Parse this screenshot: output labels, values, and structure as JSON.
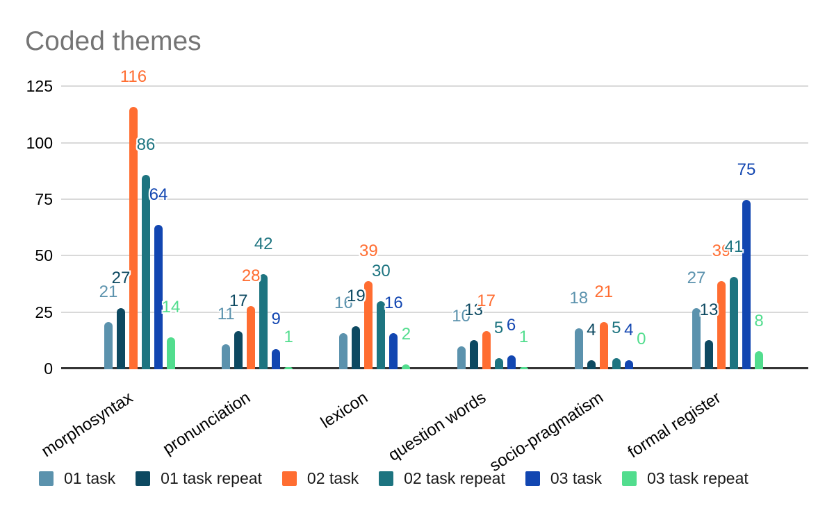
{
  "title": "Coded themes",
  "chart_data": {
    "type": "bar",
    "title": "Coded themes",
    "categories": [
      "morphosyntax",
      "pronunciation",
      "lexicon",
      "question words",
      "socio-pragmatism",
      "formal register"
    ],
    "series": [
      {
        "name": "01 task",
        "color": "#5b92ad",
        "values": [
          21,
          11,
          16,
          10,
          18,
          27
        ]
      },
      {
        "name": "01 task repeat",
        "color": "#0d4961",
        "values": [
          27,
          17,
          19,
          13,
          4,
          13
        ]
      },
      {
        "name": "02 task",
        "color": "#ff6d31",
        "values": [
          116,
          28,
          39,
          17,
          21,
          39
        ]
      },
      {
        "name": "02 task repeat",
        "color": "#1d7480",
        "values": [
          86,
          42,
          30,
          5,
          5,
          41
        ]
      },
      {
        "name": "03 task",
        "color": "#1246b1",
        "values": [
          64,
          9,
          16,
          6,
          4,
          75
        ]
      },
      {
        "name": "03 task repeat",
        "color": "#52dd8e",
        "values": [
          14,
          1,
          2,
          1,
          0,
          8
        ]
      }
    ],
    "ylim": [
      0,
      125
    ],
    "yticks": [
      0,
      25,
      50,
      75,
      100,
      125
    ],
    "grid": true,
    "legend_position": "bottom",
    "annotations": "value labels above each bar, colored like the series, with white halo",
    "x_label_rotation_deg": -33
  },
  "colors": {
    "background": "#ffffff",
    "title_text": "#757575",
    "axis_text": "#000000",
    "gridline": "#d9d9d9",
    "baseline": "#333333"
  }
}
